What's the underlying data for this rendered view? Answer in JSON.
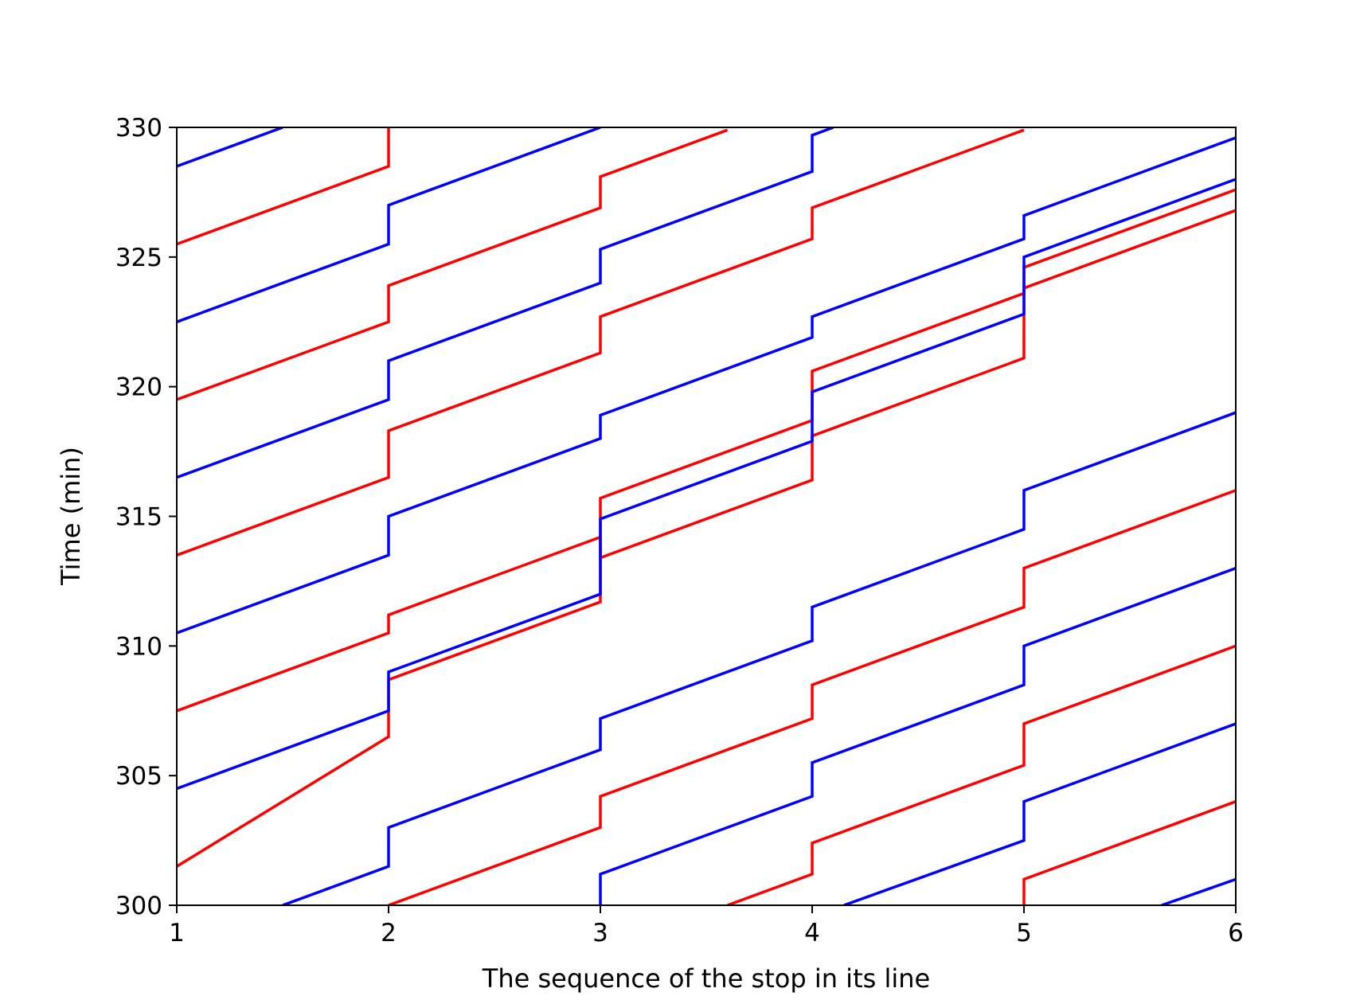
{
  "chart_data": {
    "type": "line",
    "title": "",
    "xlabel": "The sequence of the stop in its line",
    "ylabel": "Time (min)",
    "xlim": [
      1,
      6
    ],
    "ylim": [
      300,
      330
    ],
    "xticks": [
      1,
      2,
      3,
      4,
      5,
      6
    ],
    "yticks": [
      300,
      305,
      310,
      315,
      320,
      325,
      330
    ],
    "grid": false,
    "legend": "none",
    "colors": {
      "red": "#ff0000",
      "blue": "#0000ff"
    },
    "series": [
      {
        "color": "red",
        "points": [
          [
            1,
            301.5
          ],
          [
            2,
            306.5
          ],
          [
            2,
            308.7
          ],
          [
            3,
            311.7
          ],
          [
            3,
            315.7
          ],
          [
            4,
            318.7
          ],
          [
            4,
            320.6
          ],
          [
            5,
            323.6
          ],
          [
            5,
            324.6
          ],
          [
            6,
            327.6
          ]
        ]
      },
      {
        "color": "red",
        "points": [
          [
            1,
            307.5
          ],
          [
            2,
            310.5
          ],
          [
            2,
            311.2
          ],
          [
            3,
            314.2
          ],
          [
            3,
            313.4
          ],
          [
            4,
            316.4
          ],
          [
            4,
            318.1
          ],
          [
            5,
            321.1
          ],
          [
            5,
            323.8
          ],
          [
            6,
            326.8
          ]
        ]
      },
      {
        "color": "red",
        "points": [
          [
            1,
            313.5
          ],
          [
            2,
            316.5
          ],
          [
            2,
            318.3
          ],
          [
            3,
            321.3
          ],
          [
            3,
            322.7
          ],
          [
            4,
            325.7
          ],
          [
            4,
            326.9
          ],
          [
            5,
            329.9
          ]
        ]
      },
      {
        "color": "red",
        "points": [
          [
            1,
            319.5
          ],
          [
            2,
            322.5
          ],
          [
            2,
            323.9
          ],
          [
            3,
            326.9
          ],
          [
            3,
            328.1
          ],
          [
            3.6,
            329.9
          ]
        ]
      },
      {
        "color": "red",
        "points": [
          [
            1,
            325.5
          ],
          [
            2,
            328.5
          ],
          [
            2,
            330
          ]
        ]
      },
      {
        "color": "red",
        "points": [
          [
            2,
            300
          ],
          [
            3,
            303
          ],
          [
            3,
            304.2
          ],
          [
            4,
            307.2
          ],
          [
            4,
            308.5
          ],
          [
            5,
            311.5
          ],
          [
            5,
            313
          ],
          [
            6,
            316
          ]
        ]
      },
      {
        "color": "red",
        "points": [
          [
            3.6,
            300
          ],
          [
            4,
            301.2
          ],
          [
            4,
            302.4
          ],
          [
            5,
            305.4
          ],
          [
            5,
            307
          ],
          [
            6,
            310
          ]
        ]
      },
      {
        "color": "red",
        "points": [
          [
            5,
            300
          ],
          [
            5,
            301
          ],
          [
            6,
            304
          ]
        ]
      },
      {
        "color": "blue",
        "points": [
          [
            1,
            304.5
          ],
          [
            2,
            307.5
          ],
          [
            2,
            309
          ],
          [
            3,
            312
          ],
          [
            3,
            314.9
          ],
          [
            4,
            317.9
          ],
          [
            4,
            319.8
          ],
          [
            5,
            322.8
          ],
          [
            5,
            325
          ],
          [
            6,
            328
          ]
        ]
      },
      {
        "color": "blue",
        "points": [
          [
            1,
            310.5
          ],
          [
            2,
            313.5
          ],
          [
            2,
            315
          ],
          [
            3,
            318
          ],
          [
            3,
            318.9
          ],
          [
            4,
            321.9
          ],
          [
            4,
            322.7
          ],
          [
            5,
            325.7
          ],
          [
            5,
            326.6
          ],
          [
            6,
            329.6
          ]
        ]
      },
      {
        "color": "blue",
        "points": [
          [
            1,
            316.5
          ],
          [
            2,
            319.5
          ],
          [
            2,
            321
          ],
          [
            3,
            324
          ],
          [
            3,
            325.3
          ],
          [
            4,
            328.3
          ],
          [
            4,
            329.7
          ],
          [
            4.1,
            330
          ]
        ]
      },
      {
        "color": "blue",
        "points": [
          [
            1,
            322.5
          ],
          [
            2,
            325.5
          ],
          [
            2,
            327
          ],
          [
            3,
            330
          ]
        ]
      },
      {
        "color": "blue",
        "points": [
          [
            1,
            328.5
          ],
          [
            1.5,
            330
          ]
        ]
      },
      {
        "color": "blue",
        "points": [
          [
            1.5,
            300
          ],
          [
            2,
            301.5
          ],
          [
            2,
            303
          ],
          [
            3,
            306
          ],
          [
            3,
            307.2
          ],
          [
            4,
            310.2
          ],
          [
            4,
            311.5
          ],
          [
            5,
            314.5
          ],
          [
            5,
            316
          ],
          [
            6,
            319
          ]
        ]
      },
      {
        "color": "blue",
        "points": [
          [
            3,
            300
          ],
          [
            3,
            301.2
          ],
          [
            4,
            304.2
          ],
          [
            4,
            305.5
          ],
          [
            5,
            308.5
          ],
          [
            5,
            310
          ],
          [
            6,
            313
          ]
        ]
      },
      {
        "color": "blue",
        "points": [
          [
            4.15,
            300
          ],
          [
            5,
            302.5
          ],
          [
            5,
            304
          ],
          [
            6,
            307
          ]
        ]
      },
      {
        "color": "blue",
        "points": [
          [
            5.65,
            300
          ],
          [
            6,
            301
          ]
        ]
      }
    ]
  }
}
